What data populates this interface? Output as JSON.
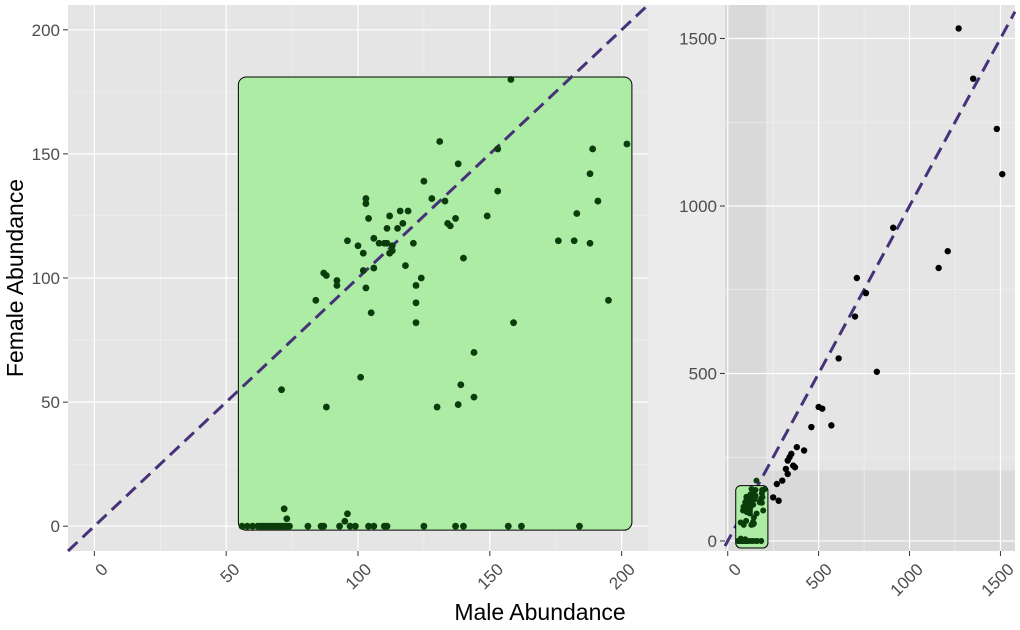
{
  "chart_data": [
    {
      "type": "scatter",
      "panel": "zoom",
      "xlabel": "Male Abundance",
      "ylabel": "Female Abundance",
      "xlim": [
        -10,
        210
      ],
      "ylim": [
        -10,
        210
      ],
      "x_ticks": [
        0,
        50,
        100,
        150,
        200
      ],
      "y_ticks": [
        0,
        50,
        100,
        150,
        200
      ],
      "grid": true,
      "reference_line": {
        "slope": 1,
        "intercept": 0,
        "style": "dashed",
        "color": "#473279"
      },
      "highlight_region": {
        "x": [
          55,
          202
        ],
        "y": [
          0,
          181
        ],
        "color": "#adeca5"
      },
      "point_color": "#0b3d0b",
      "points": [
        [
          56,
          0
        ],
        [
          58,
          0
        ],
        [
          60,
          0
        ],
        [
          62,
          0
        ],
        [
          63,
          0
        ],
        [
          64,
          0
        ],
        [
          65,
          0
        ],
        [
          66,
          0
        ],
        [
          67,
          0
        ],
        [
          68,
          0
        ],
        [
          69,
          0
        ],
        [
          70,
          0
        ],
        [
          71,
          0
        ],
        [
          72,
          0
        ],
        [
          73,
          0
        ],
        [
          74,
          0
        ],
        [
          72,
          7
        ],
        [
          73,
          3
        ],
        [
          71,
          55
        ],
        [
          81,
          0
        ],
        [
          86,
          0
        ],
        [
          87,
          0
        ],
        [
          93,
          0
        ],
        [
          95,
          2
        ],
        [
          96,
          5
        ],
        [
          97,
          0
        ],
        [
          99,
          0
        ],
        [
          104,
          0
        ],
        [
          106,
          0
        ],
        [
          110,
          0
        ],
        [
          111,
          0
        ],
        [
          125,
          0
        ],
        [
          137,
          0
        ],
        [
          140,
          0
        ],
        [
          157,
          0
        ],
        [
          162,
          0
        ],
        [
          184,
          0
        ],
        [
          84,
          91
        ],
        [
          87,
          102
        ],
        [
          88,
          101
        ],
        [
          88,
          48
        ],
        [
          92,
          99
        ],
        [
          92,
          97
        ],
        [
          96,
          115
        ],
        [
          100,
          113
        ],
        [
          101,
          60
        ],
        [
          102,
          110
        ],
        [
          102,
          103
        ],
        [
          103,
          96
        ],
        [
          103,
          130
        ],
        [
          103,
          132
        ],
        [
          104,
          124
        ],
        [
          105,
          86
        ],
        [
          106,
          116
        ],
        [
          106,
          104
        ],
        [
          108,
          114
        ],
        [
          110,
          114
        ],
        [
          111,
          120
        ],
        [
          111,
          114
        ],
        [
          112,
          125
        ],
        [
          112,
          110
        ],
        [
          113,
          111
        ],
        [
          113,
          113
        ],
        [
          115,
          120
        ],
        [
          116,
          127
        ],
        [
          117,
          122
        ],
        [
          118,
          105
        ],
        [
          119,
          127
        ],
        [
          121,
          114
        ],
        [
          122,
          97
        ],
        [
          122,
          90
        ],
        [
          122,
          82
        ],
        [
          124,
          100
        ],
        [
          125,
          139
        ],
        [
          128,
          132
        ],
        [
          130,
          48
        ],
        [
          131,
          155
        ],
        [
          133,
          131
        ],
        [
          134,
          122
        ],
        [
          135,
          121
        ],
        [
          137,
          124
        ],
        [
          138,
          146
        ],
        [
          138,
          49
        ],
        [
          139,
          57
        ],
        [
          140,
          108
        ],
        [
          144,
          70
        ],
        [
          144,
          52
        ],
        [
          149,
          125
        ],
        [
          153,
          135
        ],
        [
          153,
          152
        ],
        [
          158,
          180
        ],
        [
          159,
          82
        ],
        [
          176,
          115
        ],
        [
          182,
          115
        ],
        [
          183,
          126
        ],
        [
          188,
          114
        ],
        [
          188,
          142
        ],
        [
          189,
          152
        ],
        [
          191,
          131
        ],
        [
          195,
          91
        ],
        [
          202,
          154
        ]
      ]
    },
    {
      "type": "scatter",
      "panel": "overview",
      "xlim": [
        -15,
        1580
      ],
      "ylim": [
        -30,
        1600
      ],
      "x_ticks": [
        0,
        500,
        1000,
        1500
      ],
      "y_ticks": [
        0,
        500,
        1000,
        1500
      ],
      "grid": true,
      "reference_line": {
        "slope": 1,
        "intercept": 0,
        "style": "dashed",
        "color": "#473279"
      },
      "highlight_region": {
        "x": [
          0,
          210
        ],
        "y": [
          0,
          210
        ],
        "color": "#adeca5"
      },
      "point_color": "#000000",
      "points": [
        [
          300,
          180
        ],
        [
          320,
          215
        ],
        [
          330,
          240
        ],
        [
          340,
          250
        ],
        [
          350,
          260
        ],
        [
          360,
          225
        ],
        [
          370,
          220
        ],
        [
          380,
          280
        ],
        [
          270,
          170
        ],
        [
          250,
          130
        ],
        [
          280,
          120
        ],
        [
          330,
          200
        ],
        [
          420,
          270
        ],
        [
          460,
          340
        ],
        [
          500,
          400
        ],
        [
          520,
          395
        ],
        [
          570,
          345
        ],
        [
          610,
          545
        ],
        [
          700,
          670
        ],
        [
          710,
          785
        ],
        [
          760,
          740
        ],
        [
          820,
          505
        ],
        [
          910,
          935
        ],
        [
          1160,
          815
        ],
        [
          1210,
          865
        ],
        [
          1270,
          1530
        ],
        [
          1350,
          1380
        ],
        [
          1480,
          1230
        ],
        [
          1510,
          1095
        ]
      ]
    }
  ]
}
